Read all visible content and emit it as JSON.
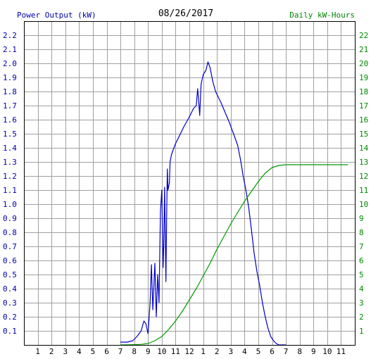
{
  "chart_data": {
    "type": "line",
    "title": "08/26/2017",
    "ylabel": "Power Output (kW)",
    "y2label": "Daily kW-Hours",
    "grid": true,
    "x_axis": {
      "unit": "hour of day",
      "xlim": [
        0,
        24
      ],
      "tick_values": [
        1,
        2,
        3,
        4,
        5,
        6,
        7,
        8,
        9,
        10,
        11,
        12,
        13,
        14,
        15,
        16,
        17,
        18,
        19,
        20,
        21,
        22,
        23
      ],
      "tick_labels": [
        "1",
        "2",
        "3",
        "4",
        "5",
        "6",
        "7",
        "8",
        "9",
        "10",
        "11",
        "12",
        "1",
        "2",
        "3",
        "4",
        "5",
        "6",
        "7",
        "8",
        "9",
        "10",
        "11"
      ]
    },
    "y_axis": {
      "ylim": [
        0,
        2.3
      ],
      "tick_labels": [
        "0.1",
        "0.2",
        "0.3",
        "0.4",
        "0.5",
        "0.6",
        "0.7",
        "0.8",
        "0.9",
        "1.0",
        "1.1",
        "1.2",
        "1.3",
        "1.4",
        "1.5",
        "1.6",
        "1.7",
        "1.8",
        "1.9",
        "2.0",
        "2.1",
        "2.2"
      ]
    },
    "y2_axis": {
      "ylim": [
        0,
        23
      ],
      "tick_labels": [
        "1",
        "2",
        "3",
        "4",
        "5",
        "6",
        "7",
        "8",
        "9",
        "10",
        "11",
        "12",
        "13",
        "14",
        "15",
        "16",
        "17",
        "18",
        "19",
        "20",
        "21",
        "22"
      ]
    },
    "series": [
      {
        "name": "Power Output (kW)",
        "axis": "left",
        "color": "#0000cc",
        "x": [
          7.0,
          7.5,
          7.9,
          8.2,
          8.5,
          8.7,
          8.85,
          9.0,
          9.15,
          9.25,
          9.35,
          9.5,
          9.6,
          9.7,
          9.8,
          9.9,
          10.0,
          10.05,
          10.1,
          10.15,
          10.2,
          10.3,
          10.35,
          10.4,
          10.45,
          10.55,
          10.6,
          10.7,
          10.8,
          11.0,
          11.3,
          11.6,
          12.0,
          12.3,
          12.5,
          12.6,
          12.7,
          12.75,
          12.85,
          13.0,
          13.2,
          13.35,
          13.5,
          13.7,
          13.9,
          14.1,
          14.3,
          14.6,
          14.9,
          15.2,
          15.5,
          15.7,
          15.9,
          16.1,
          16.3,
          16.5,
          16.7,
          16.9,
          17.1,
          17.3,
          17.5,
          17.7,
          17.9,
          18.1,
          18.3,
          18.5,
          18.7,
          18.8,
          18.9,
          19.0
        ],
        "y": [
          0.02,
          0.02,
          0.03,
          0.06,
          0.1,
          0.17,
          0.15,
          0.08,
          0.3,
          0.57,
          0.25,
          0.58,
          0.2,
          0.5,
          0.3,
          0.95,
          1.1,
          0.8,
          0.55,
          0.75,
          1.12,
          0.45,
          0.9,
          1.25,
          1.1,
          1.15,
          1.3,
          1.35,
          1.38,
          1.43,
          1.49,
          1.55,
          1.62,
          1.68,
          1.7,
          1.82,
          1.7,
          1.63,
          1.85,
          1.92,
          1.95,
          2.01,
          1.97,
          1.87,
          1.8,
          1.76,
          1.72,
          1.65,
          1.58,
          1.5,
          1.42,
          1.32,
          1.2,
          1.1,
          0.98,
          0.82,
          0.65,
          0.52,
          0.42,
          0.3,
          0.2,
          0.12,
          0.06,
          0.03,
          0.01,
          0.0,
          0.0,
          0.0,
          0.0,
          0.0
        ]
      },
      {
        "name": "Daily kW-Hours",
        "axis": "right",
        "color": "#009900",
        "x": [
          7.0,
          7.5,
          8.0,
          8.5,
          9.0,
          9.5,
          10.0,
          10.5,
          11.0,
          11.5,
          12.0,
          12.5,
          13.0,
          13.5,
          14.0,
          14.5,
          15.0,
          15.5,
          16.0,
          16.5,
          17.0,
          17.5,
          18.0,
          18.5,
          19.0,
          19.5,
          20.0,
          20.5,
          21.0,
          21.5,
          22.0,
          22.5,
          23.0,
          23.5
        ],
        "y": [
          0.0,
          0.01,
          0.02,
          0.04,
          0.1,
          0.3,
          0.6,
          1.1,
          1.7,
          2.4,
          3.2,
          4.0,
          4.9,
          5.8,
          6.8,
          7.7,
          8.6,
          9.4,
          10.2,
          10.9,
          11.6,
          12.2,
          12.6,
          12.75,
          12.8,
          12.8,
          12.8,
          12.8,
          12.8,
          12.8,
          12.8,
          12.8,
          12.8,
          12.8
        ]
      }
    ]
  }
}
